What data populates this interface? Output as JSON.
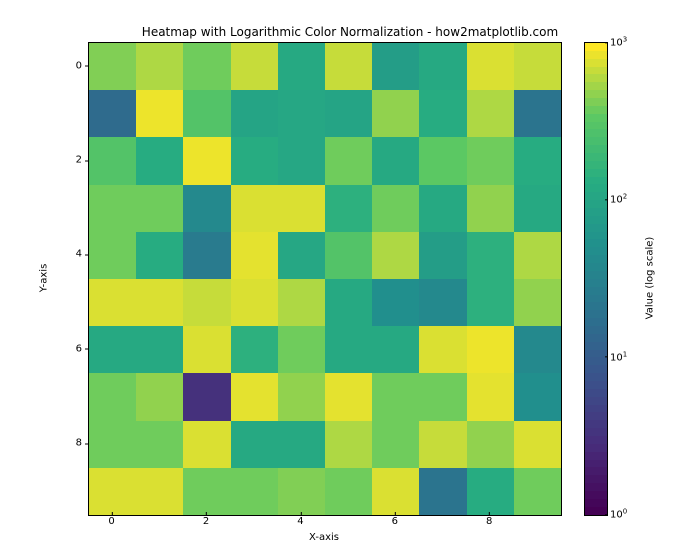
{
  "chart": {
    "type": "heatmap",
    "title": "Heatmap with Logarithmic Color Normalization - how2matplotlib.com",
    "xlabel": "X-axis",
    "ylabel": "Y-axis",
    "title_fontsize": 12,
    "label_fontsize": 10,
    "tick_fontsize": 10,
    "background_color": "#ffffff",
    "border_color": "#000000",
    "grid": {
      "rows": 10,
      "cols": 10,
      "values": [
        [
          450,
          600,
          400,
          700,
          120,
          700,
          80,
          120,
          800,
          700
        ],
        [
          15,
          900,
          300,
          100,
          110,
          100,
          500,
          130,
          600,
          20
        ],
        [
          300,
          130,
          900,
          130,
          110,
          400,
          120,
          350,
          400,
          130
        ],
        [
          400,
          400,
          40,
          800,
          800,
          150,
          400,
          120,
          500,
          120
        ],
        [
          400,
          130,
          25,
          850,
          110,
          300,
          600,
          80,
          150,
          600
        ],
        [
          800,
          800,
          700,
          800,
          600,
          120,
          50,
          40,
          150,
          500
        ],
        [
          120,
          120,
          800,
          150,
          400,
          120,
          120,
          800,
          900,
          40
        ],
        [
          400,
          500,
          3,
          850,
          500,
          850,
          400,
          400,
          850,
          50
        ],
        [
          400,
          400,
          800,
          120,
          120,
          600,
          400,
          700,
          500,
          800
        ],
        [
          800,
          800,
          400,
          400,
          450,
          400,
          800,
          20,
          130,
          400
        ]
      ]
    },
    "xticks": [
      0,
      2,
      4,
      6,
      8
    ],
    "yticks": [
      0,
      2,
      4,
      6,
      8
    ],
    "colorscale": {
      "name": "viridis",
      "type": "log",
      "vmin": 1,
      "vmax": 1000,
      "stops": [
        {
          "t": 0.0,
          "c": "#440154"
        },
        {
          "t": 0.14,
          "c": "#472c7a"
        },
        {
          "t": 0.28,
          "c": "#3b518b"
        },
        {
          "t": 0.42,
          "c": "#2c718e"
        },
        {
          "t": 0.57,
          "c": "#21908d"
        },
        {
          "t": 0.71,
          "c": "#27ad81"
        },
        {
          "t": 0.85,
          "c": "#5cc863"
        },
        {
          "t": 1.0,
          "c": "#fde725"
        }
      ]
    },
    "colorbar": {
      "label": "Value (log scale)",
      "ticks": [
        {
          "exp": 0,
          "pos": 1.0
        },
        {
          "exp": 1,
          "pos": 0.6667
        },
        {
          "exp": 2,
          "pos": 0.3333
        },
        {
          "exp": 3,
          "pos": 0.0
        }
      ]
    }
  }
}
